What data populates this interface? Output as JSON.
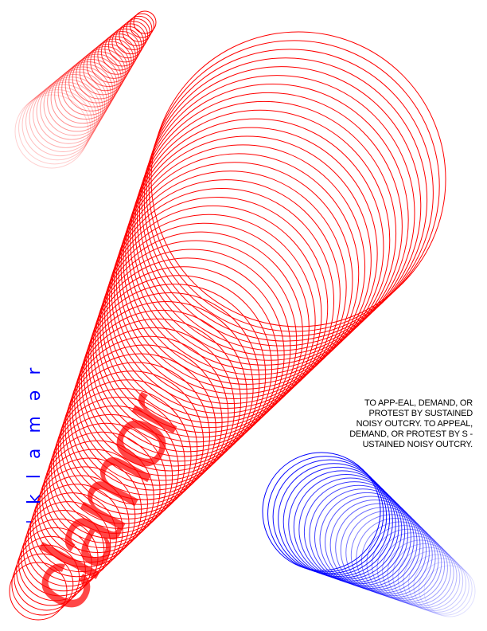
{
  "poster": {
    "headword": "clamor",
    "pronunciation": "ˈklamər",
    "definition": "TO APP-EAL, DEMAND, OR PROTEST BY SUSTAINED NOISY OUTCRY. TO APPEAL, DEMAND, OR PROTEST BY S - USTAINED NOISY OUTCRY."
  },
  "colors": {
    "red": "#ff0000",
    "blue": "#0000ff",
    "text": "#000000",
    "background": "#ffffff"
  }
}
